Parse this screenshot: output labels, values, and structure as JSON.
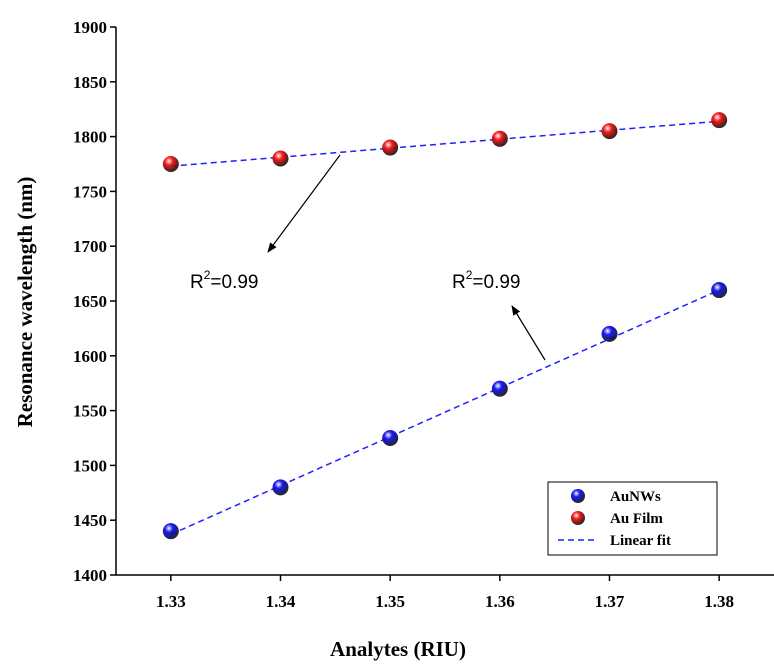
{
  "chart_data": {
    "type": "scatter",
    "x_label": "Analytes (RIU)",
    "y_label": "Resonance wavelength (nm)",
    "x": [
      1.33,
      1.34,
      1.35,
      1.36,
      1.37,
      1.38
    ],
    "series": [
      {
        "name": "AuNWs",
        "color": "#1a1aff",
        "values": [
          1440,
          1480,
          1525,
          1570,
          1620,
          1660
        ]
      },
      {
        "name": "Au Film",
        "color": "#ff1a1a",
        "values": [
          1775,
          1780,
          1790,
          1798,
          1805,
          1815
        ]
      }
    ],
    "fit": {
      "name": "Linear fit",
      "color": "#2020ff",
      "lines": [
        {
          "x": [
            1.33,
            1.38
          ],
          "y": [
            1437,
            1660
          ]
        },
        {
          "x": [
            1.33,
            1.38
          ],
          "y": [
            1773,
            1814
          ]
        }
      ]
    },
    "xlim": [
      1.325,
      1.385
    ],
    "ylim": [
      1400,
      1900
    ],
    "xticks": [
      1.33,
      1.34,
      1.35,
      1.36,
      1.37,
      1.38
    ],
    "yticks": [
      1400,
      1450,
      1500,
      1550,
      1600,
      1650,
      1700,
      1750,
      1800,
      1850,
      1900
    ],
    "legend": "lower right",
    "annotations": [
      {
        "base": "R",
        "sup": "2",
        "rest": "=0.99"
      },
      {
        "base": "R",
        "sup": "2",
        "rest": "=0.99"
      }
    ]
  }
}
